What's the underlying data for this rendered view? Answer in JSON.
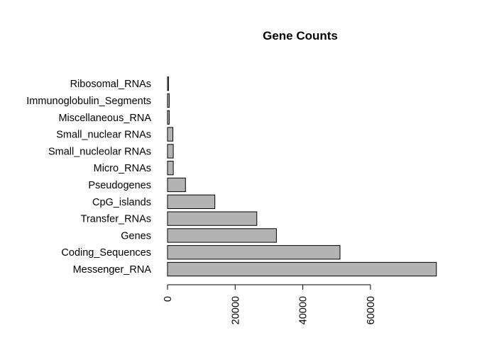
{
  "chart_data": {
    "type": "bar",
    "orientation": "horizontal",
    "title": "Gene Counts",
    "xlabel": "",
    "ylabel": "",
    "categories": [
      "Messenger_RNA",
      "Coding_Sequences",
      "Genes",
      "Transfer_RNAs",
      "CpG_islands",
      "Pseudogenes",
      "Micro_RNAs",
      "Small_nucleolar RNAs",
      "Small_nuclear RNAs",
      "Miscellaneous_RNA",
      "Immunoglobulin_Segments",
      "Ribosomal_RNAs"
    ],
    "values": [
      79500,
      51000,
      32200,
      26400,
      14000,
      5300,
      1700,
      1700,
      1600,
      500,
      500,
      300
    ],
    "xlim": [
      0,
      81000
    ],
    "xticks": [
      0,
      20000,
      40000,
      60000
    ],
    "xtick_labels": [
      "0",
      "20000",
      "40000",
      "60000"
    ],
    "grid": false,
    "legend": "none",
    "bar_color": "#b3b3b3"
  }
}
